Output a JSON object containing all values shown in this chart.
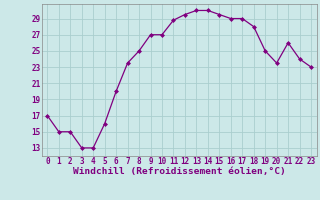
{
  "x": [
    0,
    1,
    2,
    3,
    4,
    5,
    6,
    7,
    8,
    9,
    10,
    11,
    12,
    13,
    14,
    15,
    16,
    17,
    18,
    19,
    20,
    21,
    22,
    23
  ],
  "y": [
    17,
    15,
    15,
    13,
    13,
    16,
    20,
    23.5,
    25,
    27,
    27,
    28.8,
    29.5,
    30,
    30,
    29.5,
    29,
    29,
    28,
    25,
    23.5,
    26,
    24,
    23
  ],
  "line_color": "#800080",
  "marker": "D",
  "marker_size": 2.0,
  "line_width": 0.9,
  "bg_color": "#cce8e8",
  "grid_color": "#aacece",
  "ylabel_ticks": [
    13,
    15,
    17,
    19,
    21,
    23,
    25,
    27,
    29
  ],
  "ylim": [
    12.0,
    30.8
  ],
  "xlim": [
    -0.5,
    23.5
  ],
  "xlabel": "Windchill (Refroidissement éolien,°C)",
  "xlabel_color": "#800080",
  "tick_color": "#800080",
  "tick_fontsize": 5.5,
  "xlabel_fontsize": 6.8
}
